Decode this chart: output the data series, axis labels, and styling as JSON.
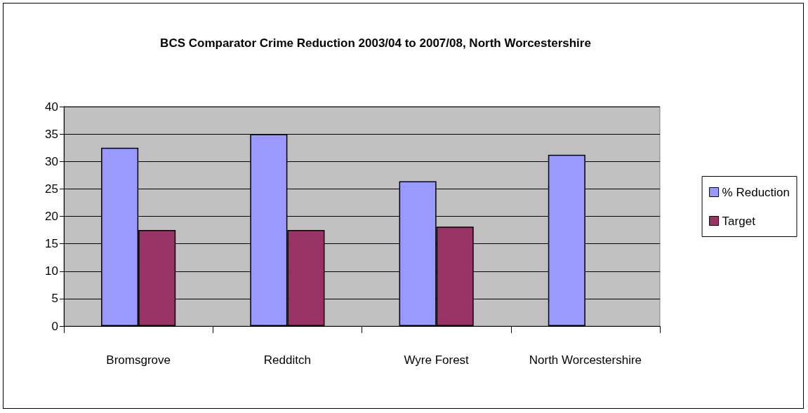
{
  "chart_data": {
    "type": "bar",
    "title": "BCS Comparator Crime Reduction 2003/04 to 2007/08, North Worcestershire",
    "categories": [
      "Bromsgrove",
      "Redditch",
      "Wyre Forest",
      "North Worcestershire"
    ],
    "series": [
      {
        "name": "% Reduction",
        "color": "#9999ff",
        "values": [
          32.5,
          35,
          26.4,
          31.2
        ]
      },
      {
        "name": "Target",
        "color": "#993366",
        "values": [
          17.5,
          17.5,
          18.1,
          null
        ]
      }
    ],
    "ylim": [
      0,
      40
    ],
    "yticks": [
      0,
      5,
      10,
      15,
      20,
      25,
      30,
      35,
      40
    ],
    "grid": "y",
    "legend": "right"
  }
}
